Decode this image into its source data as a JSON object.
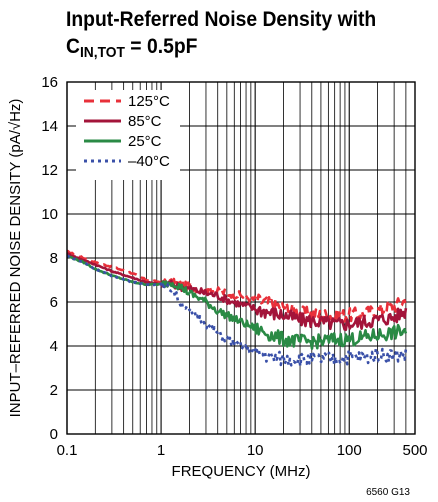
{
  "title": {
    "line1": "Input-Referred Noise Density with",
    "line2_main": "C",
    "line2_sub": "IN,TOT",
    "line2_rest": " = 0.5pF"
  },
  "footnote": "6560 G13",
  "chart_data": {
    "type": "line",
    "title": "Input-Referred Noise Density with CIN,TOT = 0.5pF",
    "xlabel": "FREQUENCY (MHz)",
    "ylabel": "INPUT–REFERRED NOISE DENSITY (pA/√Hz)",
    "xscale": "log",
    "xlim": [
      0.1,
      500
    ],
    "ylim": [
      0,
      16
    ],
    "grid": true,
    "legend_position": "top-left",
    "x_ticks": [
      {
        "value": 0.1,
        "label": "0.1"
      },
      {
        "value": 1,
        "label": "1"
      },
      {
        "value": 10,
        "label": "10"
      },
      {
        "value": 100,
        "label": "100"
      },
      {
        "value": 500,
        "label": "500"
      }
    ],
    "y_ticks": [
      {
        "value": 0,
        "label": "0"
      },
      {
        "value": 2,
        "label": "2"
      },
      {
        "value": 4,
        "label": "4"
      },
      {
        "value": 6,
        "label": "6"
      },
      {
        "value": 8,
        "label": "8"
      },
      {
        "value": 10,
        "label": "10"
      },
      {
        "value": 12,
        "label": "12"
      },
      {
        "value": 14,
        "label": "14"
      },
      {
        "value": 16,
        "label": "16"
      }
    ],
    "series": [
      {
        "name": "125°C",
        "color": "#e8303a",
        "dash": "dashed",
        "x": [
          0.1,
          0.15,
          0.2,
          0.3,
          0.5,
          0.7,
          1,
          1.3,
          1.6,
          2,
          2.5,
          3,
          4,
          5,
          7,
          10,
          15,
          20,
          30,
          50,
          70,
          100,
          150,
          200,
          300,
          400
        ],
        "y": [
          8.3,
          8.0,
          7.8,
          7.6,
          7.3,
          7.0,
          6.9,
          6.9,
          6.8,
          6.7,
          6.6,
          6.6,
          6.5,
          6.4,
          6.3,
          6.1,
          5.9,
          5.8,
          5.5,
          5.4,
          5.4,
          5.4,
          5.5,
          5.6,
          5.8,
          6.1
        ]
      },
      {
        "name": "85°C",
        "color": "#a3143a",
        "dash": "solid",
        "x": [
          0.1,
          0.15,
          0.2,
          0.3,
          0.5,
          0.7,
          1,
          1.3,
          1.6,
          2,
          2.5,
          3,
          4,
          5,
          7,
          10,
          15,
          20,
          30,
          50,
          70,
          100,
          150,
          200,
          300,
          400
        ],
        "y": [
          8.2,
          7.9,
          7.7,
          7.4,
          7.1,
          6.9,
          6.8,
          6.8,
          6.7,
          6.6,
          6.5,
          6.4,
          6.3,
          6.1,
          5.9,
          5.7,
          5.5,
          5.4,
          5.2,
          5.1,
          5.0,
          5.0,
          5.1,
          5.2,
          5.3,
          5.6
        ]
      },
      {
        "name": "25°C",
        "color": "#2a8a45",
        "dash": "solid",
        "x": [
          0.1,
          0.15,
          0.2,
          0.3,
          0.5,
          0.7,
          1,
          1.3,
          1.6,
          2,
          2.5,
          3,
          4,
          5,
          7,
          10,
          15,
          20,
          30,
          50,
          70,
          100,
          150,
          200,
          300,
          400
        ],
        "y": [
          8.1,
          7.8,
          7.5,
          7.2,
          6.9,
          6.8,
          6.8,
          6.9,
          6.7,
          6.4,
          6.2,
          6.0,
          5.6,
          5.4,
          5.1,
          4.8,
          4.5,
          4.3,
          4.2,
          4.2,
          4.3,
          4.3,
          4.4,
          4.5,
          4.6,
          4.7
        ]
      },
      {
        "name": "–40°C",
        "color": "#3a50a8",
        "dash": "dotted",
        "x": [
          0.1,
          0.15,
          0.2,
          0.3,
          0.5,
          0.7,
          1,
          1.3,
          1.6,
          2,
          2.5,
          3,
          4,
          5,
          7,
          10,
          15,
          20,
          30,
          50,
          70,
          100,
          150,
          200,
          300,
          400
        ],
        "y": [
          8.1,
          7.8,
          7.5,
          7.2,
          6.9,
          6.8,
          6.8,
          6.6,
          6.0,
          5.6,
          5.3,
          5.0,
          4.6,
          4.3,
          4.0,
          3.7,
          3.5,
          3.4,
          3.4,
          3.4,
          3.4,
          3.5,
          3.5,
          3.6,
          3.6,
          3.6
        ]
      }
    ]
  }
}
